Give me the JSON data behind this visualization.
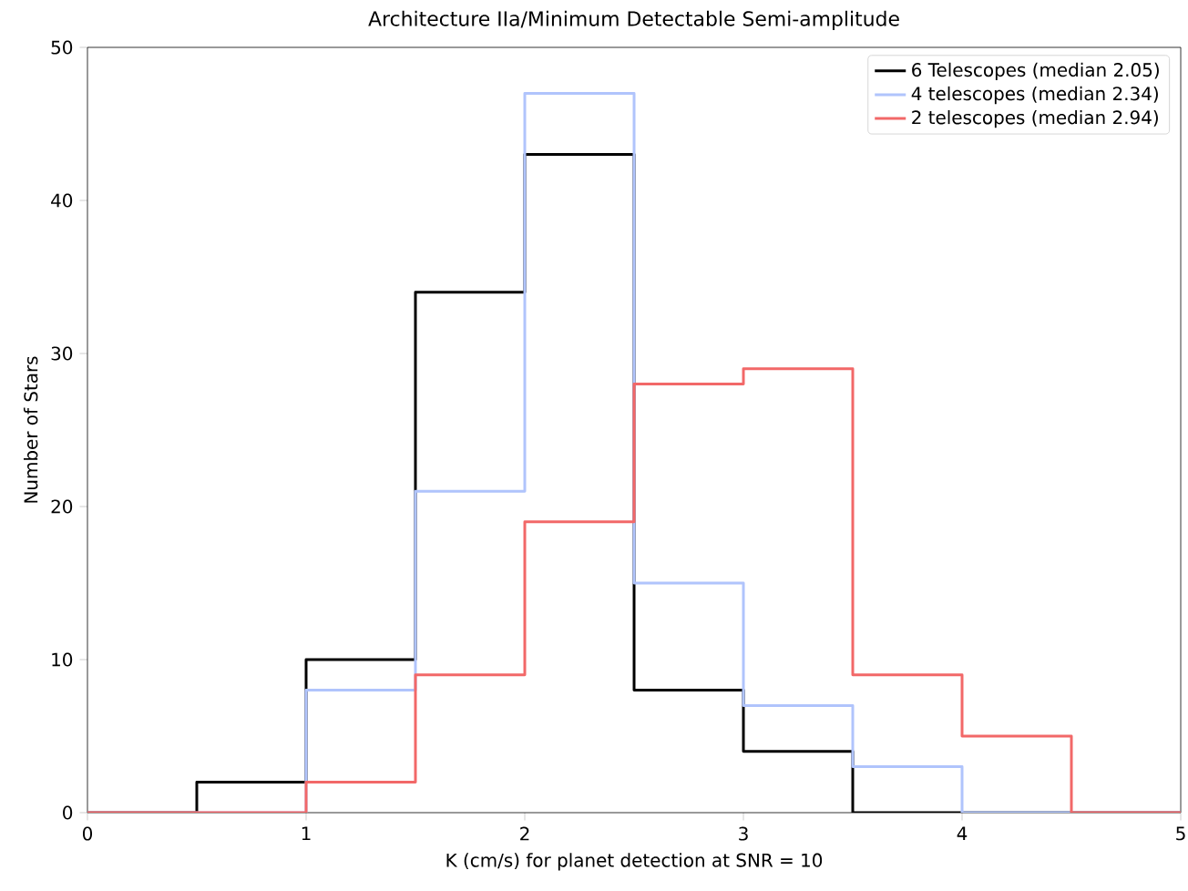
{
  "chart_data": {
    "type": "histogram",
    "title": "Architecture IIa/Minimum Detectable Semi-amplitude",
    "xlabel": "K (cm/s) for planet detection at SNR = 10",
    "ylabel": "Number of Stars",
    "bins": [
      0,
      0.5,
      1,
      1.5,
      2,
      2.5,
      3,
      3.5,
      4,
      4.5,
      5
    ],
    "series": [
      {
        "name": "6 Telescopes (median 2.05)",
        "color": "#000000",
        "values": [
          0,
          2,
          10,
          34,
          43,
          8,
          4,
          0,
          0,
          0
        ]
      },
      {
        "name": "4 telescopes (median 2.34)",
        "color": "#b0c4fc",
        "values": [
          0,
          0,
          8,
          21,
          47,
          15,
          7,
          3,
          0,
          0
        ]
      },
      {
        "name": "2 telescopes (median 2.94)",
        "color": "#f26868",
        "values": [
          0,
          0,
          2,
          9,
          19,
          28,
          29,
          9,
          5,
          0
        ]
      }
    ],
    "xlim": [
      0,
      5
    ],
    "ylim": [
      0,
      50
    ],
    "xticks": [
      0,
      1,
      2,
      3,
      4,
      5
    ],
    "yticks": [
      0,
      10,
      20,
      30,
      40,
      50
    ],
    "legend": "top right",
    "grid": false
  }
}
